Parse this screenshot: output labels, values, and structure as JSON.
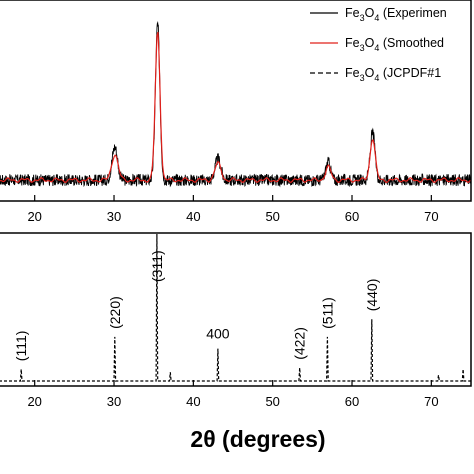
{
  "chart_data": [
    {
      "type": "line",
      "panel": "top",
      "x_ticks": [
        20,
        30,
        40,
        50,
        60,
        70
      ],
      "xlim": [
        15.5,
        75
      ],
      "grid": false,
      "legend_placement": "top-right",
      "legend": [
        {
          "base": "Fe",
          "sub1": "3",
          "mid": "O",
          "sub2": "4",
          "rest": " (Experimen",
          "color": "#000000",
          "dash": "solid"
        },
        {
          "base": "Fe",
          "sub1": "3",
          "mid": "O",
          "sub2": "4",
          "rest": " (Smoothed",
          "color": "#e0201b",
          "dash": "solid"
        },
        {
          "base": "Fe",
          "sub1": "3",
          "mid": "O",
          "sub2": "4",
          "rest": " (JCPDF#1",
          "color": "#000000",
          "dash": "dashed"
        }
      ],
      "series": [
        {
          "name": "Fe3O4 (Experimen",
          "color": "#000000",
          "baseline": 5,
          "noise": 5,
          "peaks": [
            {
              "x": 30.1,
              "height": 28,
              "width": 0.35
            },
            {
              "x": 35.5,
              "height": 132,
              "width": 0.28
            },
            {
              "x": 43.1,
              "height": 18,
              "width": 0.35
            },
            {
              "x": 57.0,
              "height": 15,
              "width": 0.3
            },
            {
              "x": 62.6,
              "height": 40,
              "width": 0.3
            }
          ]
        },
        {
          "name": "Fe3O4 (Smoothed",
          "color": "#e0201b",
          "baseline": 5,
          "peaks": [
            {
              "x": 30.1,
              "height": 22,
              "width": 0.4
            },
            {
              "x": 35.5,
              "height": 126,
              "width": 0.3
            },
            {
              "x": 43.1,
              "height": 14,
              "width": 0.4
            },
            {
              "x": 57.0,
              "height": 11,
              "width": 0.35
            },
            {
              "x": 62.6,
              "height": 36,
              "width": 0.32
            }
          ]
        }
      ]
    },
    {
      "type": "bar",
      "panel": "bottom",
      "series_name": "Fe3O4 (JCPDF#1",
      "x_ticks": [
        20,
        30,
        40,
        50,
        60,
        70
      ],
      "xlim": [
        15.5,
        75
      ],
      "xlabel": "2θ (degrees)",
      "peaks": [
        {
          "x": 18.3,
          "intensity": 8,
          "label": "(111)"
        },
        {
          "x": 30.1,
          "intensity": 30,
          "label": "(220)"
        },
        {
          "x": 35.4,
          "intensity": 100,
          "label": "(311)"
        },
        {
          "x": 37.1,
          "intensity": 6,
          "label": ""
        },
        {
          "x": 43.1,
          "intensity": 22,
          "label": "400"
        },
        {
          "x": 53.4,
          "intensity": 9,
          "label": "(422)"
        },
        {
          "x": 56.9,
          "intensity": 30,
          "label": "(511)"
        },
        {
          "x": 62.5,
          "intensity": 42,
          "label": "(440)"
        },
        {
          "x": 70.9,
          "intensity": 4,
          "label": ""
        },
        {
          "x": 74.0,
          "intensity": 8,
          "label": ""
        }
      ]
    }
  ]
}
